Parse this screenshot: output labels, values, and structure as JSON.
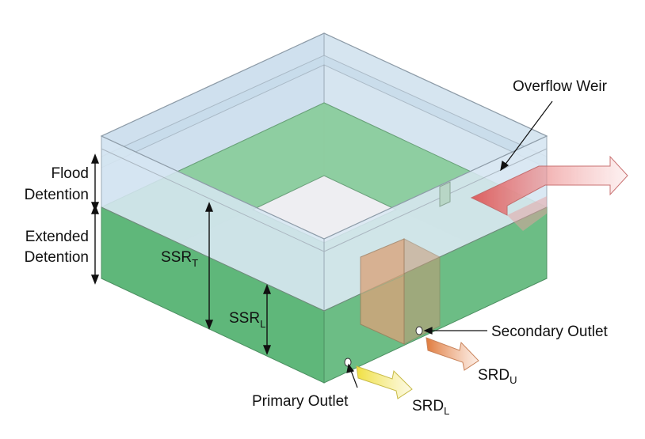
{
  "labels": {
    "overflow_weir": "Overflow Weir",
    "flood_detention_line1": "Flood",
    "flood_detention_line2": "Detention",
    "extended_detention_line1": "Extended",
    "extended_detention_line2": "Detention",
    "ssr_t_main": "SSR",
    "ssr_t_sub": "T",
    "ssr_l_main": "SSR",
    "ssr_l_sub": "L",
    "secondary_outlet": "Secondary Outlet",
    "primary_outlet": "Primary Outlet",
    "srd_u_main": "SRD",
    "srd_u_sub": "U",
    "srd_l_main": "SRD",
    "srd_l_sub": "L"
  },
  "colors": {
    "water": "#5fb77a",
    "water_dark": "#4fa86b",
    "glass": "#cfe4f2",
    "glass_edge": "#9aa9b6",
    "floor": "#eeeef0",
    "riser": "#d8a070",
    "weir_arrow": "#e85a5a",
    "secondary_arrow": "#e8824a",
    "primary_arrow": "#f2e24a"
  }
}
